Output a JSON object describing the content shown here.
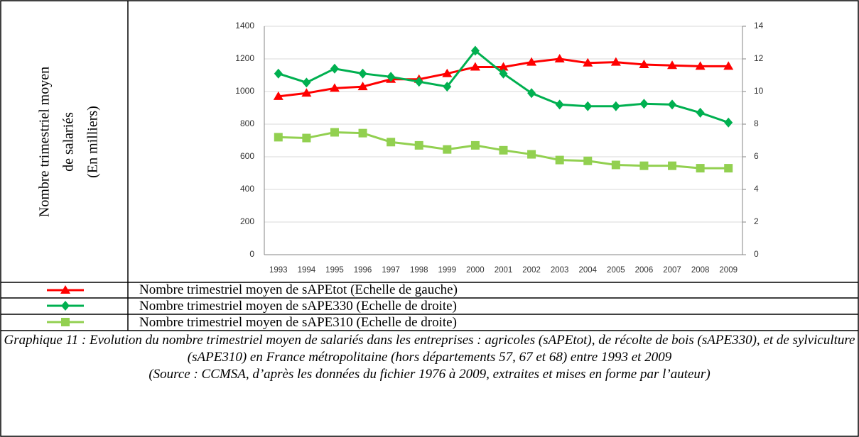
{
  "chart_data": {
    "type": "line",
    "ylabel": [
      "Nombre trimestriel moyen",
      "de salariés",
      "(En milliers)"
    ],
    "categories": [
      "1993",
      "1994",
      "1995",
      "1996",
      "1997",
      "1998",
      "1999",
      "2000",
      "2001",
      "2002",
      "2003",
      "2004",
      "2005",
      "2006",
      "2007",
      "2008",
      "2009"
    ],
    "series": [
      {
        "name": "Nombre trimestriel moyen de sAPEtot (Echelle de gauche)",
        "color": "#ff0000",
        "marker": "triangle",
        "values": [
          970,
          990,
          1020,
          1030,
          1075,
          1075,
          1110,
          1150,
          1150,
          1180,
          1200,
          1175,
          1180,
          1165,
          1160,
          1155,
          1155
        ]
      },
      {
        "name": "Nombre trimestriel moyen de sAPE330 (Echelle de droite)",
        "color": "#00b050",
        "marker": "diamond",
        "axis": "y2",
        "values": [
          11.1,
          10.55,
          11.4,
          11.1,
          10.9,
          10.6,
          10.3,
          12.5,
          11.1,
          9.9,
          9.2,
          9.1,
          9.1,
          9.25,
          9.2,
          8.7,
          8.1
        ]
      },
      {
        "name": "Nombre trimestriel moyen de sAPE310 (Echelle de droite)",
        "color": "#92d050",
        "marker": "square",
        "axis": "y2",
        "values": [
          7.2,
          7.15,
          7.5,
          7.45,
          6.9,
          6.7,
          6.45,
          6.7,
          6.4,
          6.15,
          5.8,
          5.75,
          5.5,
          5.45,
          5.45,
          5.3,
          5.3
        ]
      }
    ],
    "ylim": [
      0,
      1400
    ],
    "yticks": [
      0,
      200,
      400,
      600,
      800,
      1000,
      1200,
      1400
    ],
    "y2lim": [
      0,
      14
    ],
    "y2ticks": [
      0,
      2,
      4,
      6,
      8,
      10,
      12,
      14
    ],
    "grid": true,
    "caption": "Graphique 11 : Evolution du nombre trimestriel moyen de salariés dans les entreprises : agricoles (sAPEtot), de récolte de bois (sAPE330), et de sylviculture (sAPE310) en France métropolitaine (hors départements 57, 67 et 68) entre 1993 et 2009",
    "source": "(Source : CCMSA, d’après les données du fichier 1976 à 2009, extraites et mises en forme par l’auteur)"
  }
}
